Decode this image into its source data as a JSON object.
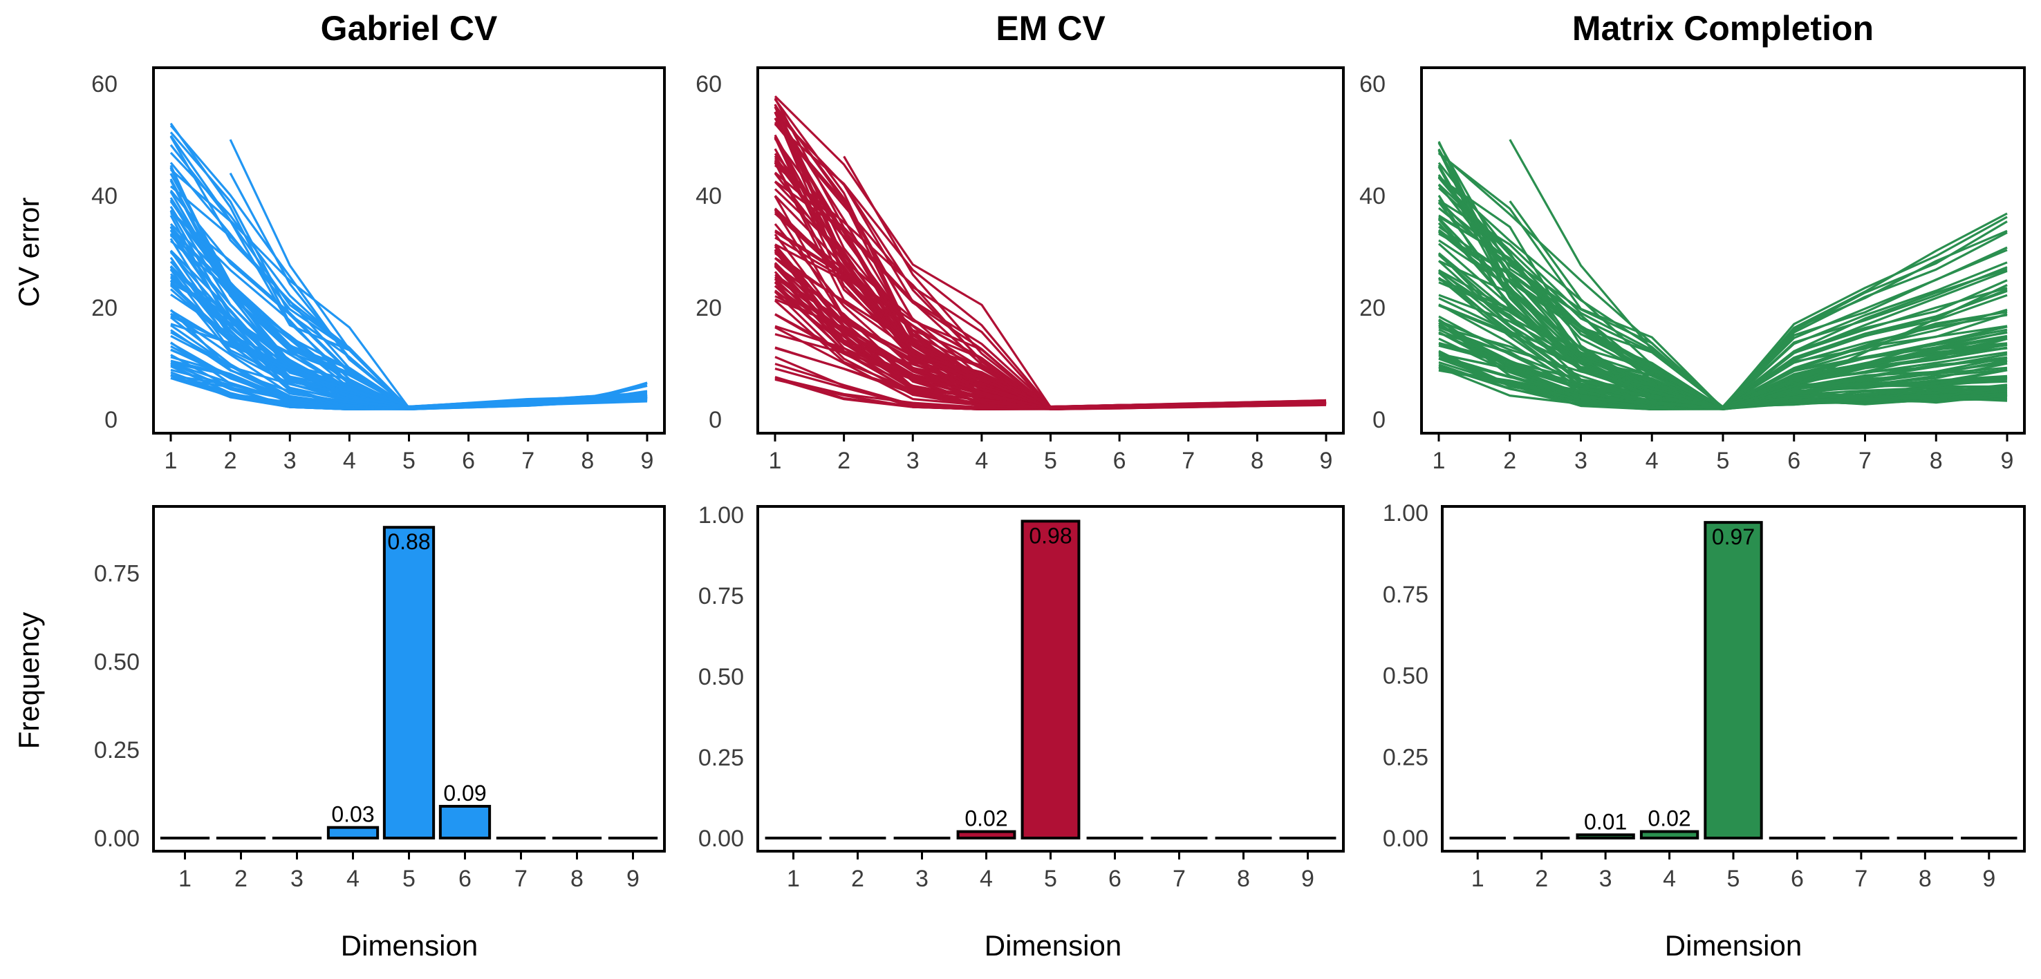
{
  "figure": {
    "x_axis_label": "Dimension",
    "row_labels": [
      "CV error",
      "Frequency"
    ]
  },
  "chart_data": [
    {
      "type": "line",
      "title": "Gabriel CV",
      "color": "#2196F3",
      "xlabel": "",
      "ylabel": "CV error",
      "x": [
        1,
        2,
        3,
        4,
        5,
        6,
        7,
        8,
        9
      ],
      "ylim": [
        0,
        60
      ],
      "yticks": [
        0,
        20,
        40,
        60
      ],
      "grid": false,
      "minimum_at": 5,
      "curves": "many overlapping CV error curves (one per simulation); first value ranges ~7 to ~53, elbow/minimum at dimension 5 (~2), slight rise to ~3-7 at dimension 9"
    },
    {
      "type": "line",
      "title": "EM CV",
      "color": "#B01035",
      "xlabel": "",
      "ylabel": "",
      "x": [
        1,
        2,
        3,
        4,
        5,
        6,
        7,
        8,
        9
      ],
      "ylim": [
        0,
        60
      ],
      "yticks": [
        0,
        20,
        40,
        60
      ],
      "grid": false,
      "minimum_at": 5,
      "curves": "many overlapping CV error curves; first value ranges ~7 to ~58, minimum at dimension 5 (~2), nearly flat ~2.5-3 through dimension 9"
    },
    {
      "type": "line",
      "title": "Matrix Completion",
      "color": "#2A8F4F",
      "xlabel": "",
      "ylabel": "",
      "x": [
        1,
        2,
        3,
        4,
        5,
        6,
        7,
        8,
        9
      ],
      "ylim": [
        0,
        60
      ],
      "yticks": [
        0,
        20,
        40,
        60
      ],
      "grid": false,
      "minimum_at": 5,
      "curves": "many overlapping CV error curves; first value ranges ~8 to ~50, V-shaped with minimum at dimension 5 (~2), rising to ~4-38 at dimension 9"
    },
    {
      "type": "bar",
      "title": "",
      "color": "#2196F3",
      "xlabel": "Dimension",
      "ylabel": "Frequency",
      "categories": [
        "1",
        "2",
        "3",
        "4",
        "5",
        "6",
        "7",
        "8",
        "9"
      ],
      "values": [
        0,
        0,
        0,
        0.03,
        0.88,
        0.09,
        0,
        0,
        0
      ],
      "labels": [
        "",
        "",
        "",
        "0.03",
        "0.88",
        "0.09",
        "",
        "",
        ""
      ],
      "ylim": [
        0,
        0.9
      ],
      "yticks": [
        "0.00",
        "0.25",
        "0.50",
        "0.75"
      ],
      "grid": false
    },
    {
      "type": "bar",
      "title": "",
      "color": "#B01035",
      "xlabel": "Dimension",
      "ylabel": "",
      "categories": [
        "1",
        "2",
        "3",
        "4",
        "5",
        "6",
        "7",
        "8",
        "9"
      ],
      "values": [
        0,
        0,
        0,
        0.02,
        0.98,
        0,
        0,
        0,
        0
      ],
      "labels": [
        "",
        "",
        "",
        "0.02",
        "0.98",
        "",
        "",
        "",
        ""
      ],
      "ylim": [
        0,
        1.0
      ],
      "yticks": [
        "0.00",
        "0.25",
        "0.50",
        "0.75",
        "1.00"
      ],
      "grid": false
    },
    {
      "type": "bar",
      "title": "",
      "color": "#2A8F4F",
      "xlabel": "Dimension",
      "ylabel": "",
      "categories": [
        "1",
        "2",
        "3",
        "4",
        "5",
        "6",
        "7",
        "8",
        "9"
      ],
      "values": [
        0,
        0,
        0.01,
        0.02,
        0.97,
        0,
        0,
        0,
        0
      ],
      "labels": [
        "",
        "",
        "0.01",
        "0.02",
        "0.97",
        "",
        "",
        "",
        ""
      ],
      "ylim": [
        0,
        1.0
      ],
      "yticks": [
        "0.00",
        "0.25",
        "0.50",
        "0.75",
        "1.00"
      ],
      "grid": false
    }
  ]
}
